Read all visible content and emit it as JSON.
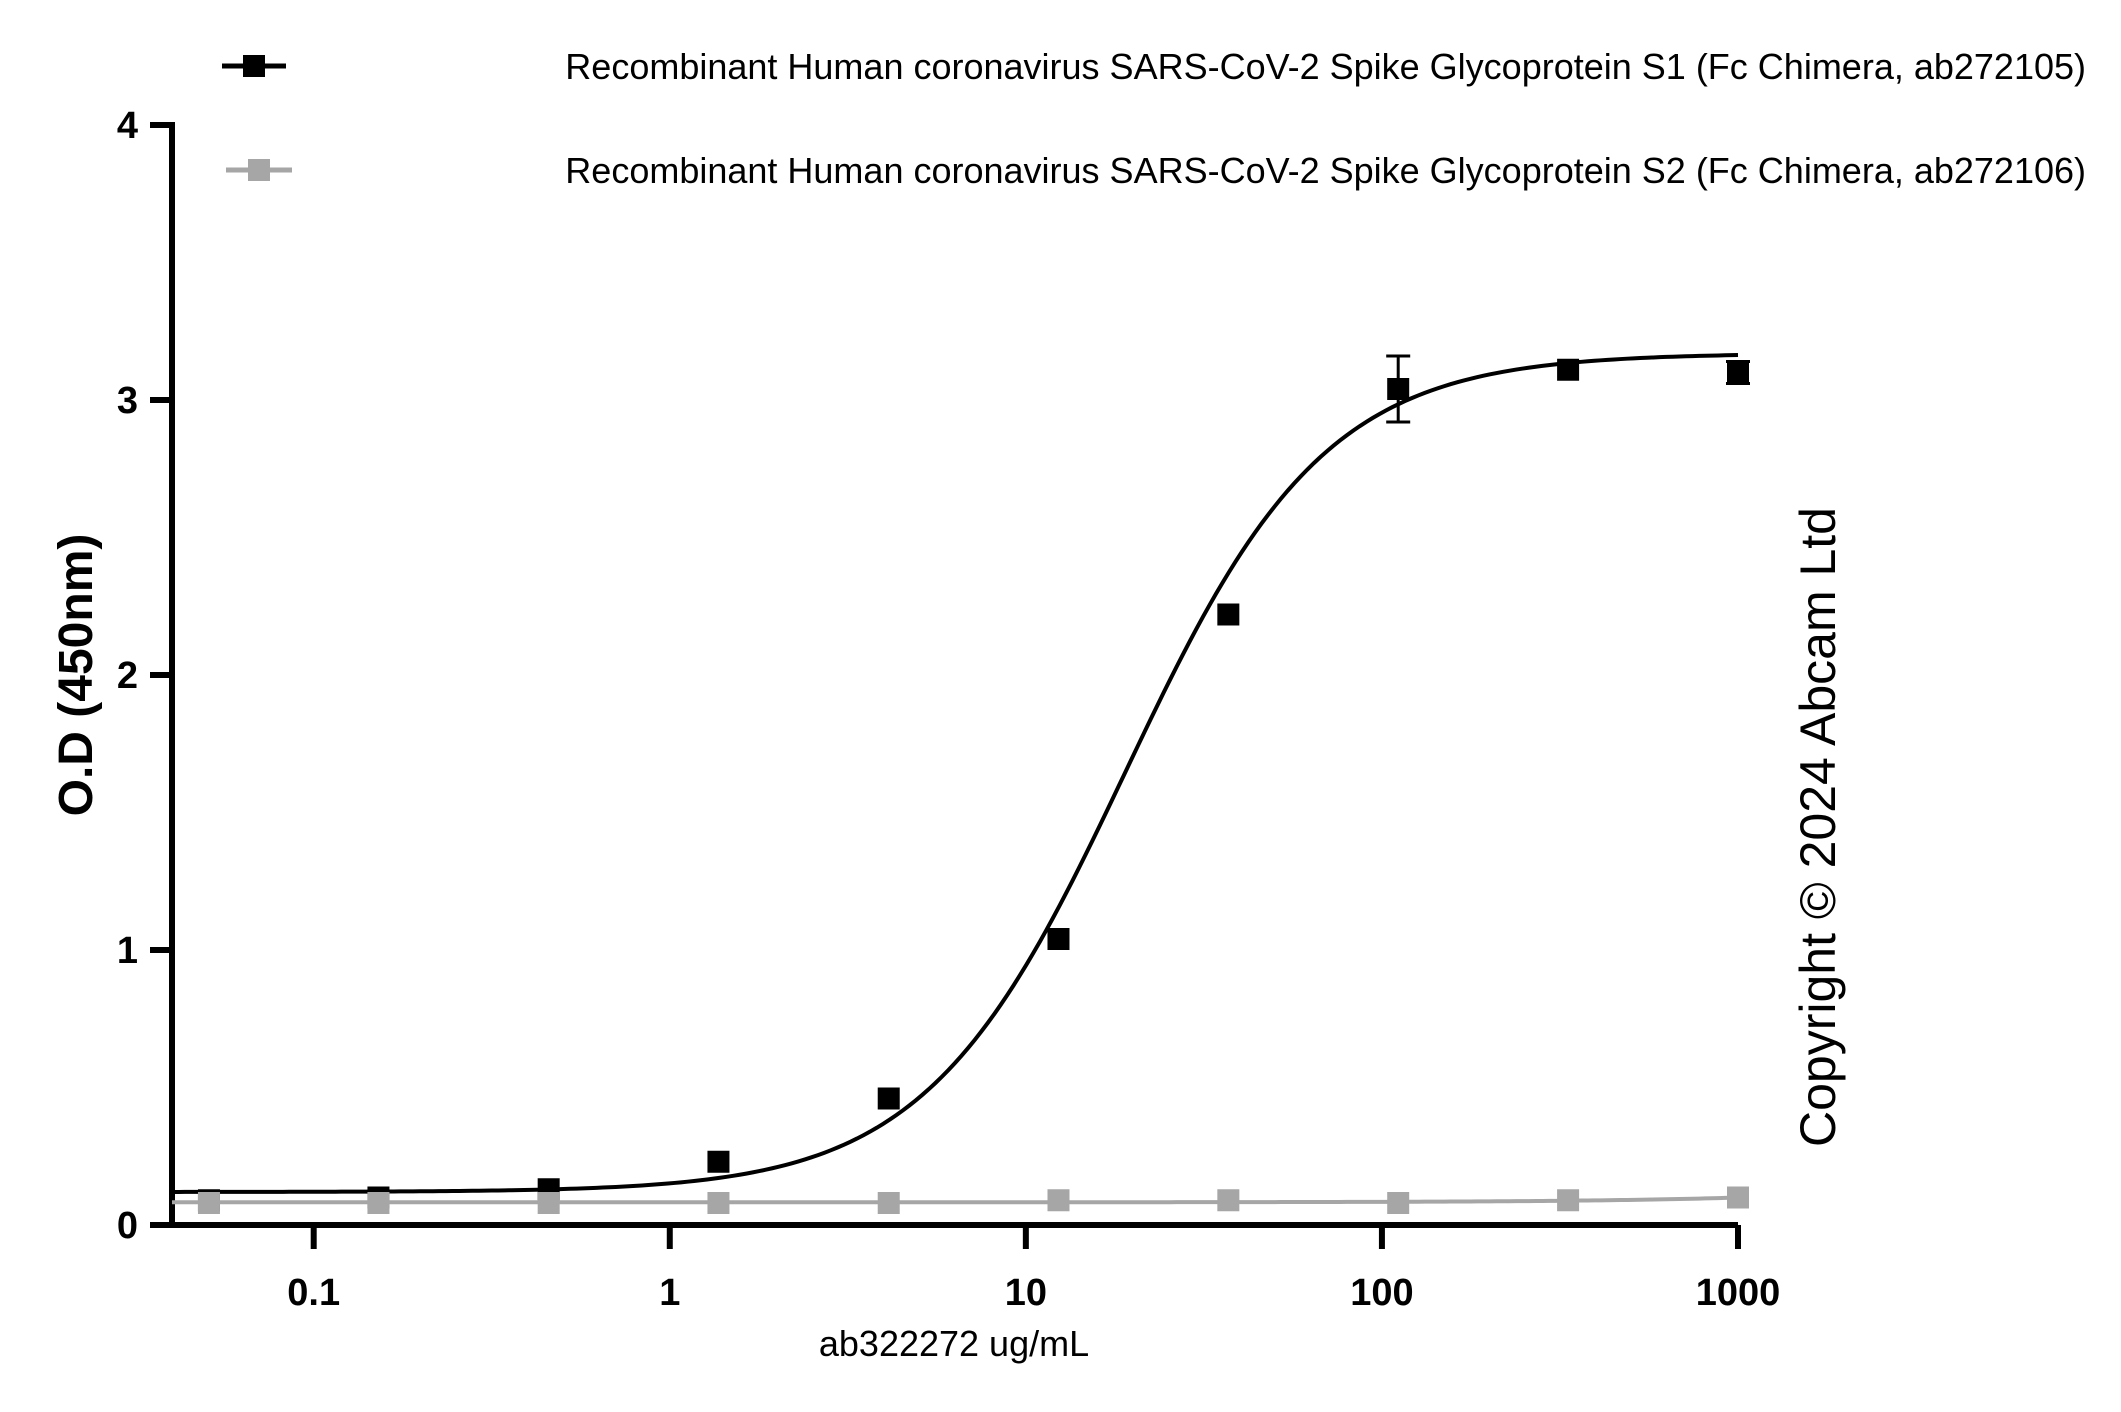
{
  "chart_data": {
    "type": "scatter",
    "xscale": "log",
    "xlim": [
      0.04,
      1000
    ],
    "ylim": [
      0,
      4
    ],
    "xticks": [
      0.1,
      1,
      10,
      100,
      1000
    ],
    "xtick_labels": [
      "0.1",
      "1",
      "10",
      "100",
      "1000"
    ],
    "yticks": [
      0,
      1,
      2,
      3,
      4
    ],
    "ytick_labels": [
      "0",
      "1",
      "2",
      "3",
      "4"
    ],
    "xlabel": "ab322272 ug/mL",
    "ylabel": "O.D (450nm)",
    "grid": false,
    "legend_position": "top-right",
    "series": [
      {
        "name": "Recombinant Human coronavirus SARS-CoV-2 Spike Glycoprotein S1 (Fc Chimera, ab272105)",
        "color": "#000000",
        "marker": "square",
        "x": [
          0.0508,
          0.152,
          0.457,
          1.37,
          4.12,
          12.35,
          37.04,
          111.1,
          333.3,
          1000
        ],
        "y": [
          0.09,
          0.1,
          0.13,
          0.23,
          0.46,
          1.04,
          2.22,
          3.04,
          3.11,
          3.1
        ],
        "error": [
          0,
          0,
          0,
          0,
          0,
          0,
          0,
          0.12,
          0,
          0.04
        ],
        "fit": {
          "model": "4PL",
          "bottom": 0.12,
          "top": 3.17,
          "ec50": 19.0,
          "hill": 1.55
        }
      },
      {
        "name": "Recombinant Human coronavirus SARS-CoV-2 Spike Glycoprotein S2 (Fc Chimera, ab272106)",
        "color": "#a6a6a6",
        "marker": "square",
        "x": [
          0.0508,
          0.152,
          0.457,
          1.37,
          4.12,
          12.35,
          37.04,
          111.1,
          333.3,
          1000
        ],
        "y": [
          0.08,
          0.08,
          0.08,
          0.08,
          0.08,
          0.09,
          0.09,
          0.08,
          0.09,
          0.1
        ],
        "error": [
          0,
          0,
          0,
          0,
          0,
          0,
          0,
          0,
          0,
          0
        ],
        "fit": {
          "model": "linear",
          "intercept": 0.0825,
          "slope": 1.75e-05
        }
      }
    ]
  },
  "watermark": "Copyright ©  2024 Abcam Ltd"
}
